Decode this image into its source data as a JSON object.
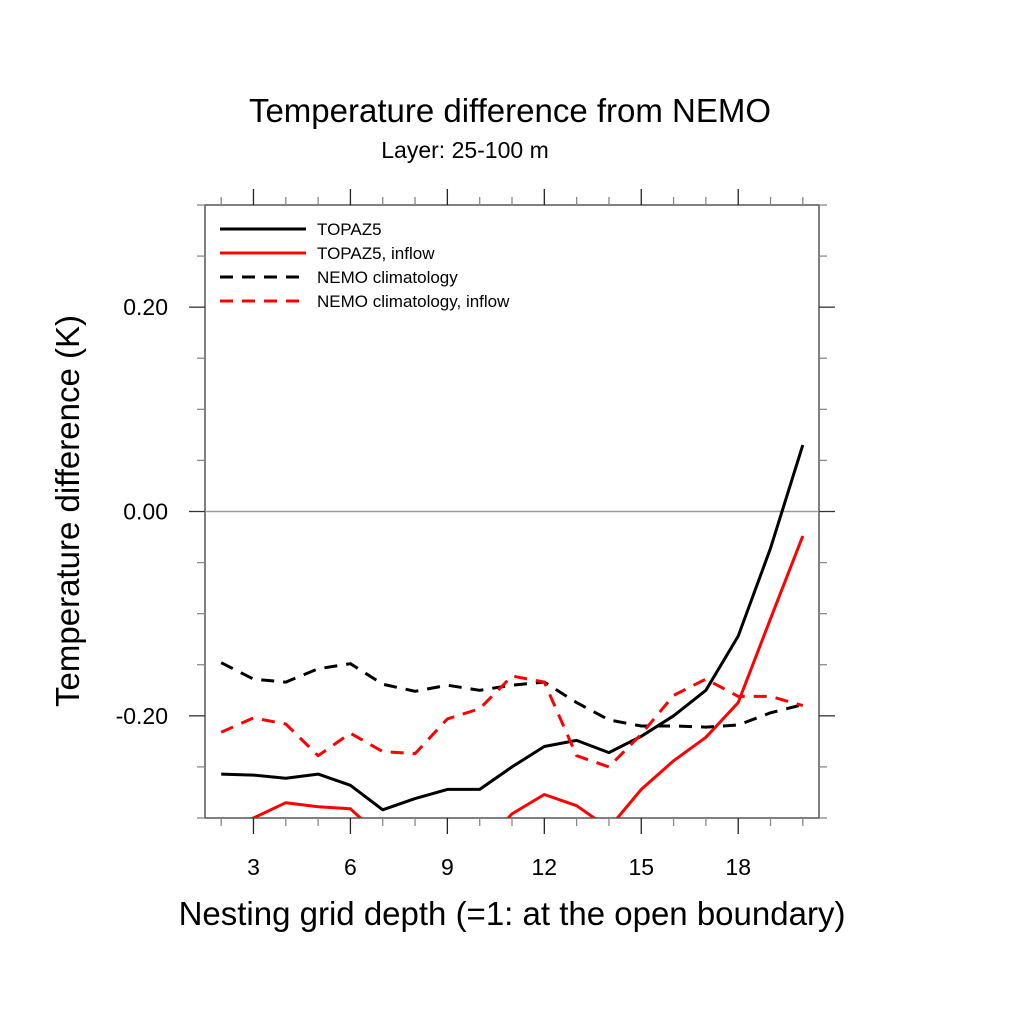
{
  "chart_data": {
    "type": "line",
    "title": "Temperature difference from NEMO",
    "subtitle": "Layer: 25-100 m",
    "xlabel": "Nesting grid depth (=1: at the open boundary)",
    "ylabel": "Temperature difference (K)",
    "xlim": [
      1.5,
      20.5
    ],
    "ylim": [
      -0.3,
      0.3
    ],
    "x_ticks": [
      3,
      6,
      9,
      12,
      15,
      18
    ],
    "x_tick_labels": [
      "3",
      "6",
      "9",
      "12",
      "15",
      "18"
    ],
    "x_minor_step": 1,
    "y_ticks": [
      0.2,
      0.0,
      -0.2
    ],
    "y_tick_labels": [
      "0.20",
      "0.00",
      "-0.20"
    ],
    "y_minor_step": 0.05,
    "reference_line": 0.0,
    "grid": false,
    "legend_position": "top-left",
    "x": [
      2,
      3,
      4,
      5,
      6,
      7,
      8,
      9,
      10,
      11,
      12,
      13,
      14,
      15,
      16,
      17,
      18,
      19,
      20
    ],
    "series": [
      {
        "name": "TOPAZ5",
        "color": "#000000",
        "dash": "solid",
        "values": [
          -0.257,
          -0.258,
          -0.261,
          -0.257,
          -0.268,
          -0.292,
          -0.281,
          -0.272,
          -0.272,
          -0.25,
          -0.23,
          -0.224,
          -0.236,
          -0.22,
          -0.2,
          -0.175,
          -0.122,
          -0.036,
          0.065
        ]
      },
      {
        "name": "TOPAZ5, inflow",
        "color": "#ff0000",
        "dash": "solid",
        "values": [
          -0.31,
          -0.3,
          -0.285,
          -0.289,
          -0.291,
          -0.32,
          -0.33,
          -0.34,
          -0.33,
          -0.296,
          -0.277,
          -0.288,
          -0.31,
          -0.272,
          -0.244,
          -0.221,
          -0.187,
          -0.105,
          -0.024
        ]
      },
      {
        "name": "NEMO climatology",
        "color": "#000000",
        "dash": "dashed",
        "values": [
          -0.148,
          -0.164,
          -0.167,
          -0.154,
          -0.149,
          -0.169,
          -0.176,
          -0.17,
          -0.175,
          -0.17,
          -0.167,
          -0.187,
          -0.204,
          -0.21,
          -0.21,
          -0.211,
          -0.209,
          -0.197,
          -0.189
        ]
      },
      {
        "name": "NEMO climatology, inflow",
        "color": "#ff0000",
        "dash": "dashed",
        "values": [
          -0.216,
          -0.202,
          -0.208,
          -0.239,
          -0.217,
          -0.235,
          -0.237,
          -0.203,
          -0.193,
          -0.161,
          -0.167,
          -0.239,
          -0.25,
          -0.218,
          -0.18,
          -0.164,
          -0.181,
          -0.181,
          -0.19
        ]
      }
    ]
  }
}
